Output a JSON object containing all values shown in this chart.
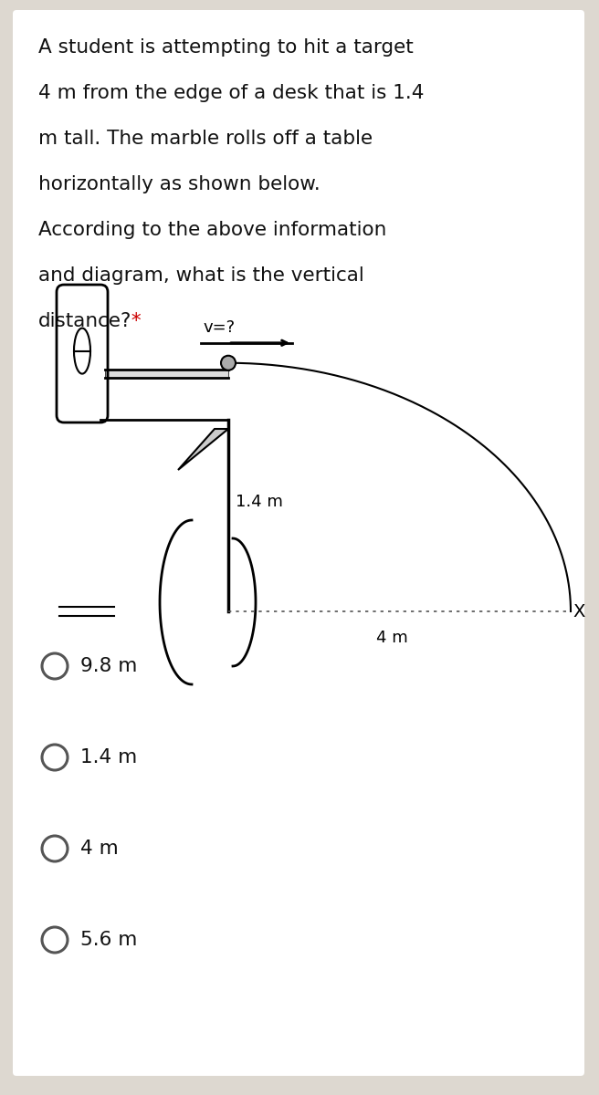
{
  "question_lines": [
    "A student is attempting to hit a target",
    "4 m from the edge of a desk that is 1.4",
    "m tall. The marble rolls off a table",
    "horizontally as shown below.",
    "According to the above information",
    "and diagram, what is the vertical",
    "distance?"
  ],
  "star_color": "#cc0000",
  "options": [
    "9.8 m",
    "1.4 m",
    "4 m",
    "5.6 m"
  ],
  "label_v": "v=?",
  "label_14": "1.4 m",
  "label_4": "4 m",
  "label_x": "X",
  "font_size_q": 15.5,
  "font_size_opt": 15.5,
  "font_size_diag": 13,
  "bg_outer": "#ddd8d0",
  "bg_card": "#ffffff"
}
